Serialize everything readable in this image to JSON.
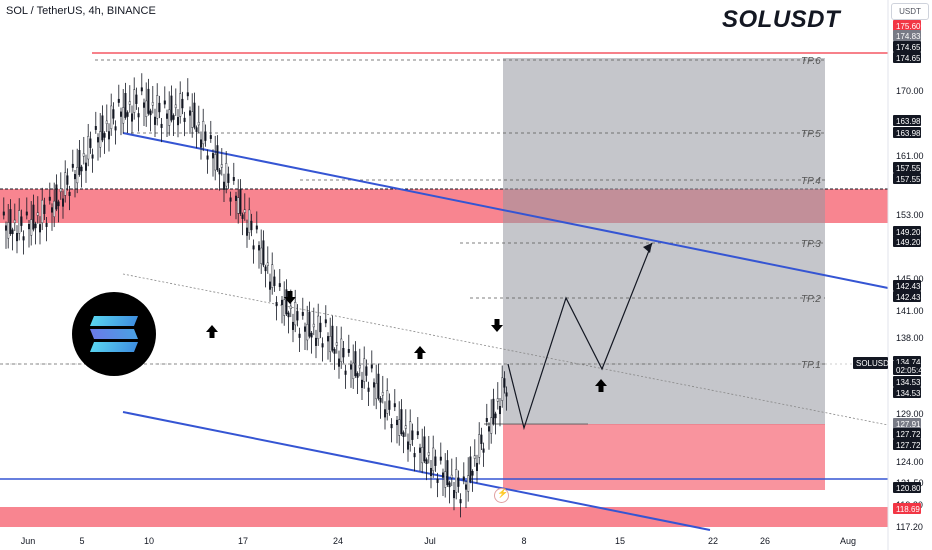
{
  "header": {
    "symbol": "SOL / TetherUS, 4h, BINANCE",
    "title": "SOLUSDT",
    "currency": "USDT"
  },
  "logo": {
    "icon": "solana-logo-icon"
  },
  "replay": {
    "icon": "lightning-icon"
  },
  "colors": {
    "bull": "#089981",
    "bear": "#f23645",
    "channel": "#3555d3",
    "zone_red": "#f7707d",
    "zone_gray": "#9598a1",
    "candle": "#131722",
    "axis_text": "#131722"
  },
  "chart_data": {
    "type": "candlestick",
    "title": "SOLUSDT",
    "price_axis": {
      "ticks": [
        "170.00",
        "161.00",
        "153.00",
        "145.00",
        "141.00",
        "138.00",
        "129.00",
        "124.00",
        "121.50",
        "119.20",
        "117.20"
      ],
      "ylim": [
        116,
        178
      ]
    },
    "time_axis": {
      "ticks": [
        "Jun",
        "5",
        "10",
        "17",
        "24",
        "Jul",
        "8",
        "15",
        "22",
        "26",
        "Aug"
      ]
    },
    "price_labels": [
      {
        "value": 175.6,
        "text": "175.60",
        "style": "red"
      },
      {
        "value": 174.83,
        "text": "174.83",
        "style": "gray"
      },
      {
        "value": 174.65,
        "text": "174.65",
        "style": "dark"
      },
      {
        "value": 174.65,
        "text": "174.65",
        "style": "dark"
      },
      {
        "value": 163.98,
        "text": "163.98",
        "style": "dark"
      },
      {
        "value": 163.98,
        "text": "163.98",
        "style": "dark"
      },
      {
        "value": 157.55,
        "text": "157.55",
        "style": "dark"
      },
      {
        "value": 157.55,
        "text": "157.55",
        "style": "dark"
      },
      {
        "value": 149.2,
        "text": "149.20",
        "style": "dark"
      },
      {
        "value": 149.2,
        "text": "149.20",
        "style": "dark"
      },
      {
        "value": 142.43,
        "text": "142.43",
        "style": "dark"
      },
      {
        "value": 142.43,
        "text": "142.43",
        "style": "dark"
      },
      {
        "value": 134.74,
        "text": "134.74",
        "style": "dark"
      },
      {
        "value": 134.74,
        "text": "02:05:40",
        "style": "dark"
      },
      {
        "value": 134.53,
        "text": "134.53",
        "style": "dark"
      },
      {
        "value": 134.53,
        "text": "134.53",
        "style": "dark"
      },
      {
        "value": 127.91,
        "text": "127.91",
        "style": "gray"
      },
      {
        "value": 127.72,
        "text": "127.72",
        "style": "dark"
      },
      {
        "value": 127.72,
        "text": "127.72",
        "style": "dark"
      },
      {
        "value": 120.8,
        "text": "120.80",
        "style": "dark"
      },
      {
        "value": 118.69,
        "text": "118.69",
        "style": "red"
      }
    ],
    "current_price_tag": {
      "text": "SOLUSDT",
      "value": 134.74
    },
    "take_profits": [
      {
        "label": "TP.1",
        "value": 134.74
      },
      {
        "label": "TP.2",
        "value": 142.43
      },
      {
        "label": "TP.3",
        "value": 149.2
      },
      {
        "label": "TP.4",
        "value": 157.55
      },
      {
        "label": "TP.5",
        "value": 163.98
      },
      {
        "label": "TP.6",
        "value": 174.65
      }
    ],
    "candles": [
      [
        104.5,
        153.0
      ],
      [
        98.0,
        154.8
      ],
      [
        91.0,
        158.8
      ],
      [
        87.0,
        163.4
      ],
      [
        81.0,
        166.7
      ],
      [
        76.0,
        168.1
      ],
      [
        70.0,
        166.5
      ],
      [
        67.0,
        167.5
      ],
      [
        62.0,
        162.3
      ],
      [
        57.0,
        157.2
      ],
      [
        52.0,
        151.3
      ],
      [
        45.0,
        144.3
      ],
      [
        38.0,
        140.8
      ],
      [
        33.0,
        139.9
      ],
      [
        28.0,
        136.3
      ],
      [
        24.0,
        134.4
      ],
      [
        18.0,
        129.7
      ],
      [
        14.0,
        126.3
      ],
      [
        10.0,
        123.2
      ],
      [
        7.0,
        120.8
      ],
      [
        4.0,
        127.9
      ],
      [
        3.0,
        134.7
      ]
    ]
  }
}
